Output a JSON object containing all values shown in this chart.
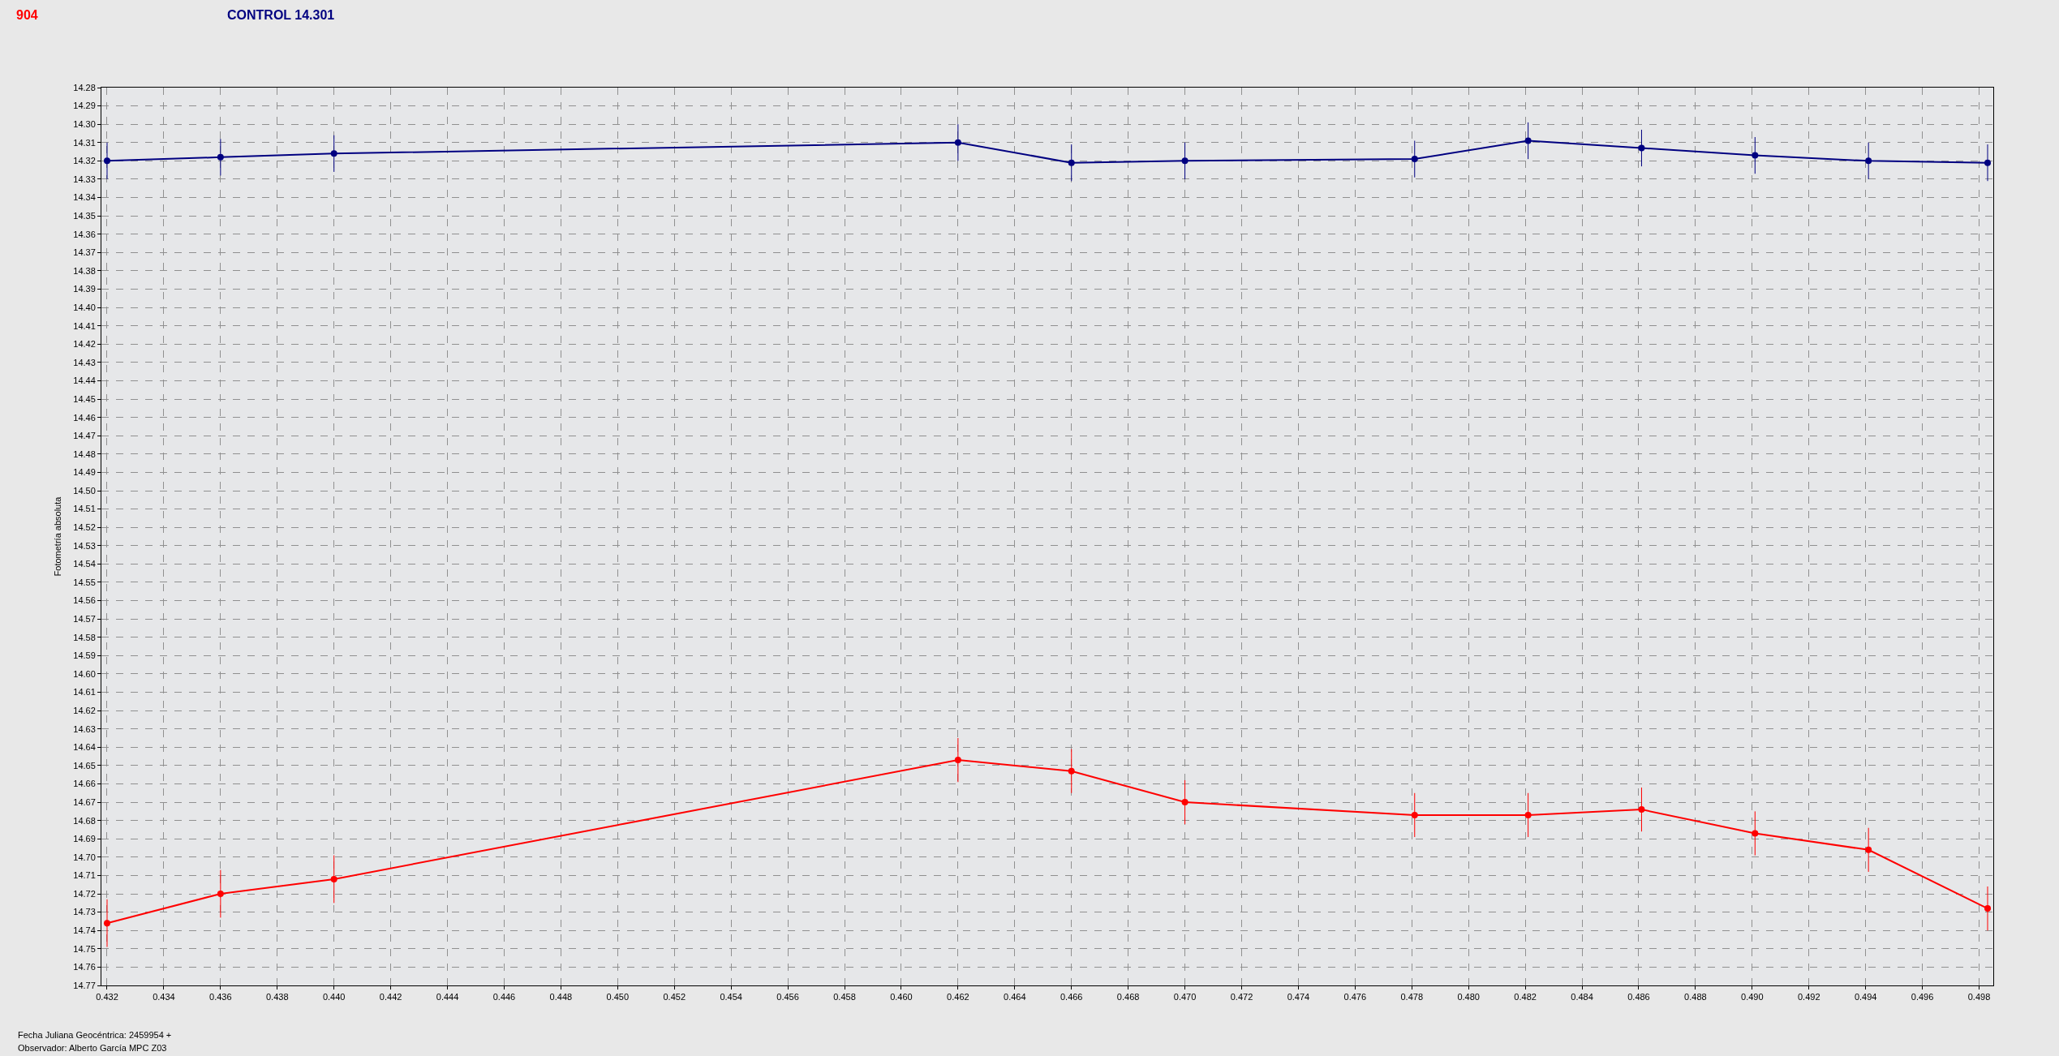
{
  "chart_data": {
    "type": "line",
    "title": "CONTROL 14.301",
    "ylabel": "Fotometría absoluta",
    "annotations": [
      "904",
      "Fecha Juliana Geocéntrica: 2459954 +",
      "Observador: Alberto García MPC Z03"
    ],
    "x": [
      0.432,
      0.436,
      0.44,
      0.462,
      0.466,
      0.47,
      0.4781,
      0.4821,
      0.4861,
      0.4901,
      0.4941,
      0.4983
    ],
    "series": [
      {
        "color": "#000080",
        "values": [
          14.32,
          14.318,
          14.316,
          14.31,
          14.321,
          14.32,
          14.319,
          14.309,
          14.313,
          14.317,
          14.32,
          14.321
        ],
        "errors": [
          0.01,
          0.01,
          0.01,
          0.01,
          0.01,
          0.01,
          0.01,
          0.01,
          0.01,
          0.01,
          0.01,
          0.01
        ]
      },
      {
        "color": "#ff0000",
        "values": [
          14.736,
          14.72,
          14.712,
          14.647,
          14.653,
          14.67,
          14.677,
          14.677,
          14.674,
          14.687,
          14.696,
          14.728
        ],
        "errors": [
          0.013,
          0.013,
          0.013,
          0.012,
          0.012,
          0.012,
          0.012,
          0.012,
          0.012,
          0.012,
          0.012,
          0.012
        ]
      }
    ],
    "xlim": [
      0.4318,
      0.4985
    ],
    "xticks": [
      0.432,
      0.434,
      0.436,
      0.438,
      {
        "value": 0.44,
        "label": "0.440"
      },
      0.442,
      0.444,
      0.446,
      0.448,
      {
        "value": 0.45,
        "label": "0.450"
      },
      0.452,
      0.454,
      0.456,
      0.458,
      {
        "value": 0.46,
        "label": "0.460"
      },
      0.462,
      0.464,
      0.466,
      0.468,
      {
        "value": 0.47,
        "label": "0.470"
      },
      0.472,
      0.474,
      0.476,
      0.478,
      {
        "value": 0.48,
        "label": "0.480"
      },
      0.482,
      0.484,
      0.486,
      0.488,
      {
        "value": 0.49,
        "label": "0.490"
      },
      0.492,
      0.494,
      0.496,
      0.498
    ],
    "ylim": [
      14.77,
      14.28
    ],
    "yticks": [
      14.28,
      14.29,
      {
        "value": 14.3,
        "label": "14.30"
      },
      14.31,
      14.32,
      14.33,
      14.34,
      14.35,
      14.36,
      14.37,
      14.38,
      14.39,
      {
        "value": 14.4,
        "label": "14.40"
      },
      14.41,
      14.42,
      14.43,
      14.44,
      14.45,
      14.46,
      14.47,
      14.48,
      14.49,
      {
        "value": 14.5,
        "label": "14.50"
      },
      14.51,
      14.52,
      14.53,
      14.54,
      14.55,
      14.56,
      14.57,
      14.58,
      14.59,
      {
        "value": 14.6,
        "label": "14.60"
      },
      14.61,
      14.62,
      14.63,
      14.64,
      14.65,
      14.66,
      14.67,
      14.68,
      14.69,
      {
        "value": 14.7,
        "label": "14.70"
      },
      14.71,
      14.72,
      14.73,
      14.74,
      14.75,
      14.76,
      14.77
    ],
    "grid": true,
    "marker": "circle",
    "line_style": "solid"
  }
}
